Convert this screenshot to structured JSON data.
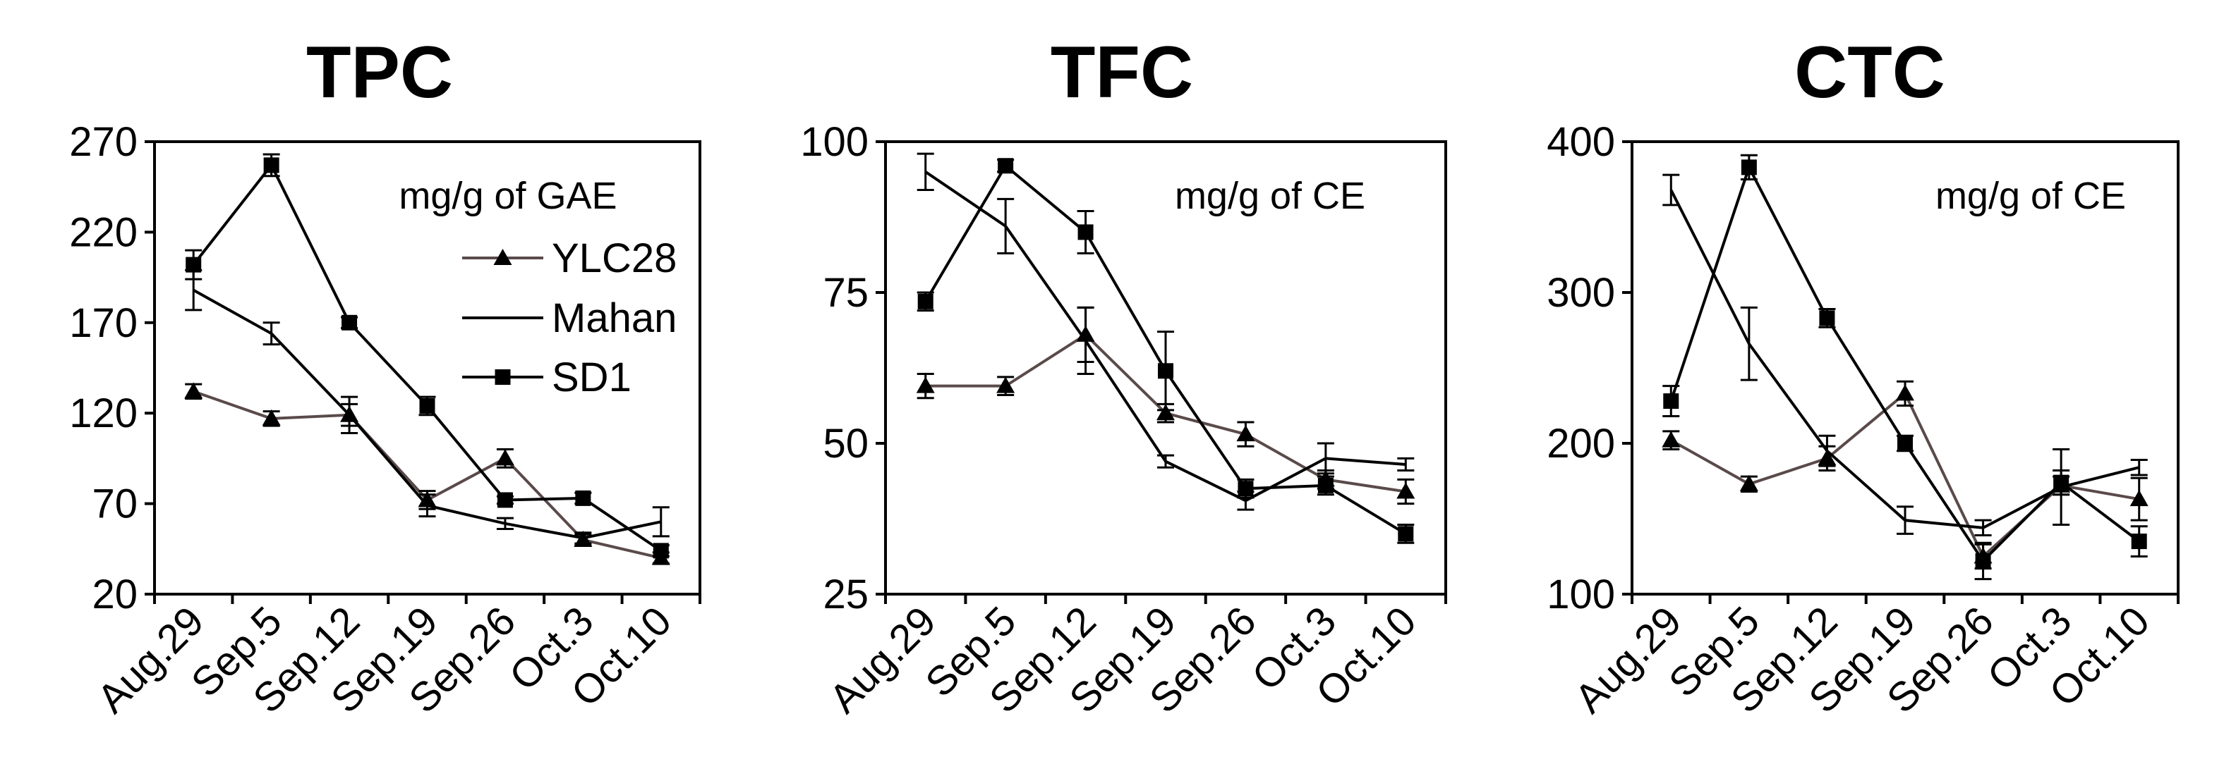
{
  "chart_data": [
    {
      "type": "line",
      "title": "TPC",
      "unit_label": "mg/g of GAE",
      "categories": [
        "Aug.29",
        "Sep.5",
        "Sep.12",
        "Sep.19",
        "Sep.26",
        "Oct.3",
        "Oct.10"
      ],
      "yticks": [
        "20",
        "70",
        "120",
        "170",
        "220",
        "270"
      ],
      "ylim": [
        20,
        270
      ],
      "legend": {
        "placement": "top-right",
        "entries": [
          {
            "series": "YLC28",
            "label": "YLC28"
          },
          {
            "series": "Mahan",
            "label": "Mahan"
          },
          {
            "series": "SD1",
            "label": "SD1"
          }
        ]
      },
      "series": [
        {
          "name": "YLC28",
          "marker": "triangle",
          "color": "#5a4a4a",
          "values": [
            132,
            117,
            119,
            72,
            95,
            50,
            40
          ],
          "errors": [
            4,
            4,
            6,
            5,
            5,
            3,
            3
          ]
        },
        {
          "name": "Mahan",
          "marker": "none",
          "color": "#000000",
          "values": [
            188,
            164,
            119,
            69,
            59,
            51,
            60
          ],
          "errors": [
            11,
            6,
            10,
            6,
            3,
            3,
            8
          ]
        },
        {
          "name": "SD1",
          "marker": "square",
          "color": "#000000",
          "values": [
            202,
            257,
            170,
            124,
            72,
            73,
            44
          ],
          "errors": [
            8,
            6,
            3,
            5,
            2,
            3,
            3
          ]
        }
      ]
    },
    {
      "type": "line",
      "title": "TFC",
      "unit_label": "mg/g of CE",
      "categories": [
        "Aug.29",
        "Sep.5",
        "Sep.12",
        "Sep.19",
        "Sep.26",
        "Oct.3",
        "Oct.10"
      ],
      "yticks": [
        "25",
        "50",
        "75",
        "100"
      ],
      "ylim": [
        25,
        100
      ],
      "series": [
        {
          "name": "YLC28",
          "marker": "triangle",
          "color": "#5a4a4a",
          "values": [
            59.5,
            59.5,
            68,
            55,
            51.5,
            44,
            42
          ],
          "errors": [
            2,
            1.5,
            4.5,
            1.5,
            2,
            1.5,
            2
          ]
        },
        {
          "name": "Mahan",
          "marker": "none",
          "color": "#000000",
          "values": [
            95,
            86,
            67,
            47,
            40.5,
            47.5,
            46.5
          ],
          "errors": [
            3,
            4.5,
            5.5,
            1,
            1.5,
            2.5,
            1
          ]
        },
        {
          "name": "SD1",
          "marker": "square",
          "color": "#000000",
          "values": [
            73.5,
            96,
            85,
            62,
            42.5,
            43,
            35
          ],
          "errors": [
            1.5,
            1,
            3.5,
            6.5,
            1.5,
            1.5,
            1.5
          ]
        }
      ]
    },
    {
      "type": "line",
      "title": "CTC",
      "unit_label": "mg/g of CE",
      "categories": [
        "Aug.29",
        "Sep.5",
        "Sep.12",
        "Sep.19",
        "Sep.26",
        "Oct.3",
        "Oct.10"
      ],
      "yticks": [
        "100",
        "200",
        "300",
        "400"
      ],
      "ylim": [
        100,
        400
      ],
      "series": [
        {
          "name": "YLC28",
          "marker": "triangle",
          "color": "#5a4a4a",
          "values": [
            202,
            173,
            190,
            233,
            125,
            172,
            163
          ],
          "errors": [
            6,
            5,
            8,
            8,
            8,
            6,
            14
          ]
        },
        {
          "name": "Mahan",
          "marker": "none",
          "color": "#000000",
          "values": [
            368,
            266,
            195,
            149,
            144,
            171,
            184
          ],
          "errors": [
            10,
            24,
            10,
            9,
            5,
            25,
            5
          ]
        },
        {
          "name": "SD1",
          "marker": "square",
          "color": "#000000",
          "values": [
            228,
            383,
            283,
            200,
            122,
            174,
            135
          ],
          "errors": [
            10,
            8,
            6,
            5,
            12,
            8,
            10
          ]
        }
      ]
    }
  ]
}
